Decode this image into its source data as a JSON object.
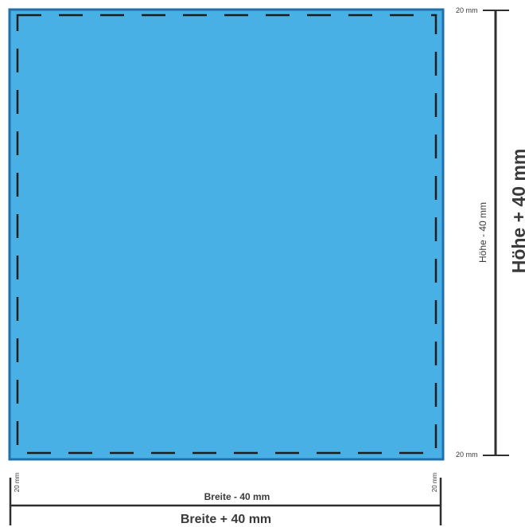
{
  "labels": {
    "top_margin": "20 mm",
    "bottom_margin": "20 mm",
    "left_margin": "20 mm",
    "right_margin": "20 mm",
    "inner_height": "Höhe - 40 mm",
    "outer_height": "Höhe + 40 mm",
    "inner_width": "Breite - 40 mm",
    "outer_width": "Breite + 40 mm"
  },
  "colors": {
    "panel_fill": "#48b0e4",
    "panel_border": "#1f6fa8",
    "dash_line": "#1d1d1d",
    "dimension_line": "#2f2f2f"
  }
}
